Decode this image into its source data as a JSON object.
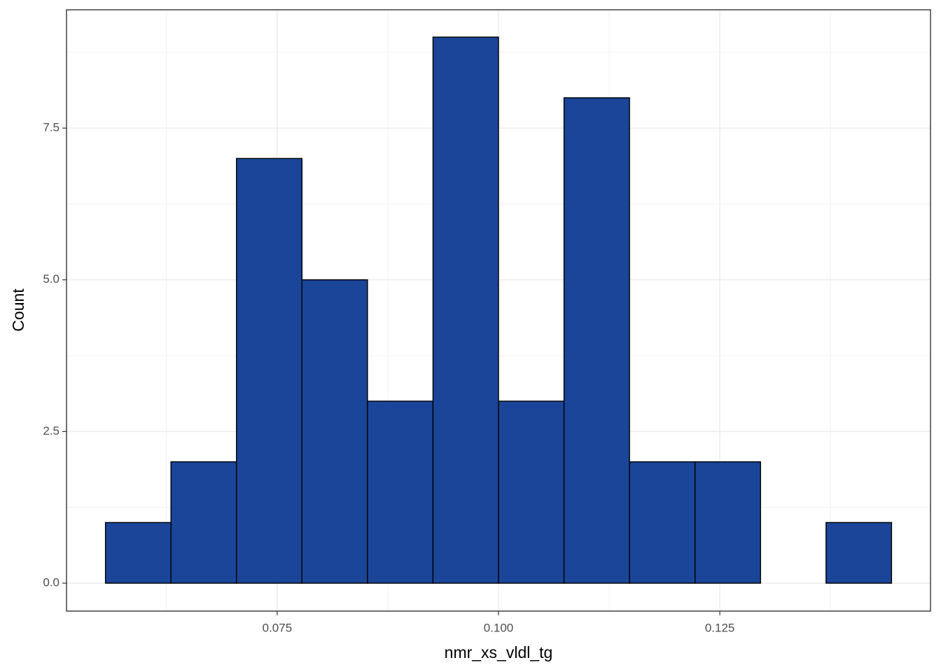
{
  "chart_data": {
    "type": "histogram",
    "x_label": "nmr_xs_vldl_tg",
    "y_label": "Count",
    "bins": [
      0.0556,
      0.063,
      0.0704,
      0.0778,
      0.0852,
      0.0926,
      0.1,
      0.1074,
      0.1148,
      0.1222,
      0.1296,
      0.137,
      0.1444
    ],
    "counts": [
      1,
      2,
      7,
      5,
      3,
      9,
      3,
      8,
      2,
      2,
      0,
      1
    ],
    "color": "#1a4599",
    "edge_color": "#000000",
    "xlim": [
      0.0512,
      0.1488
    ],
    "ylim": [
      -0.46,
      9.45
    ],
    "xticks": [
      0.075,
      {
        "value": 0.1,
        "label": "0.100"
      },
      0.125
    ],
    "yticks": [
      {
        "value": 0,
        "label": "0.0"
      },
      2.5,
      {
        "value": 5,
        "label": "5.0"
      },
      7.5
    ],
    "grid": true
  }
}
